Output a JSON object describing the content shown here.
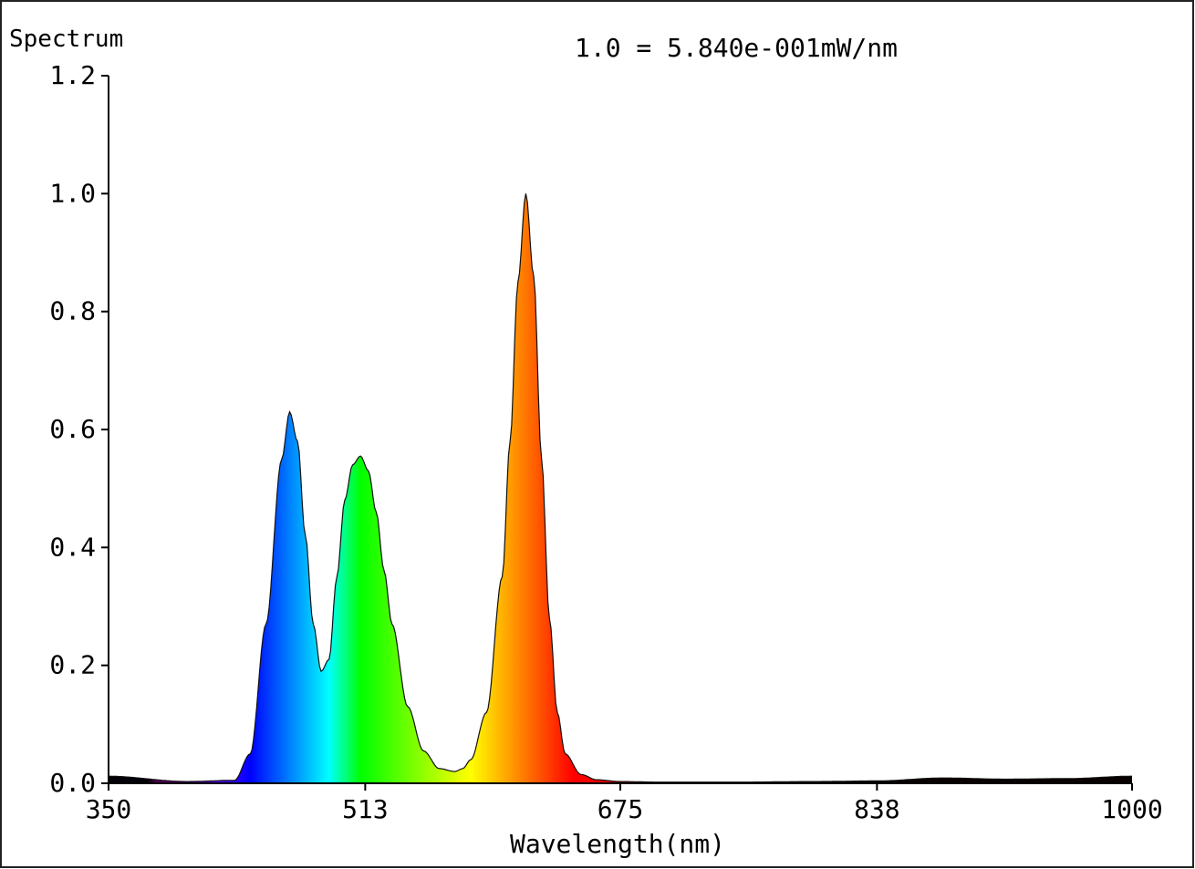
{
  "chart_data": {
    "type": "area",
    "title": "Spectrum",
    "annotation": "1.0 = 5.840e-001mW/nm",
    "xlabel": "Wavelength(nm)",
    "ylabel": "",
    "xlim": [
      350,
      1000
    ],
    "ylim": [
      0,
      1.2
    ],
    "x_ticks": [
      "350",
      "513",
      "675",
      "838",
      "1000"
    ],
    "y_ticks": [
      "0.0",
      "0.2",
      "0.4",
      "0.6",
      "0.8",
      "1.0",
      "1.2"
    ],
    "grid": false,
    "fill": "wavelength-colored spectrum",
    "series": [
      {
        "x": [
          350,
          400,
          430,
          440,
          450,
          460,
          465,
          470,
          475,
          480,
          485,
          490,
          495,
          500,
          505,
          510,
          515,
          520,
          525,
          530,
          540,
          550,
          560,
          570,
          575,
          580,
          590,
          600,
          605,
          610,
          615,
          620,
          625,
          630,
          635,
          640,
          650,
          660,
          675,
          700,
          750,
          800,
          838,
          880,
          920,
          960,
          1000
        ],
        "y": [
          0.012,
          0.003,
          0.005,
          0.05,
          0.27,
          0.55,
          0.63,
          0.58,
          0.42,
          0.27,
          0.19,
          0.21,
          0.35,
          0.48,
          0.54,
          0.555,
          0.53,
          0.46,
          0.36,
          0.27,
          0.13,
          0.055,
          0.025,
          0.02,
          0.025,
          0.04,
          0.12,
          0.35,
          0.58,
          0.85,
          1.0,
          0.86,
          0.55,
          0.28,
          0.12,
          0.05,
          0.015,
          0.006,
          0.003,
          0.002,
          0.002,
          0.003,
          0.004,
          0.009,
          0.007,
          0.008,
          0.012
        ]
      }
    ]
  }
}
